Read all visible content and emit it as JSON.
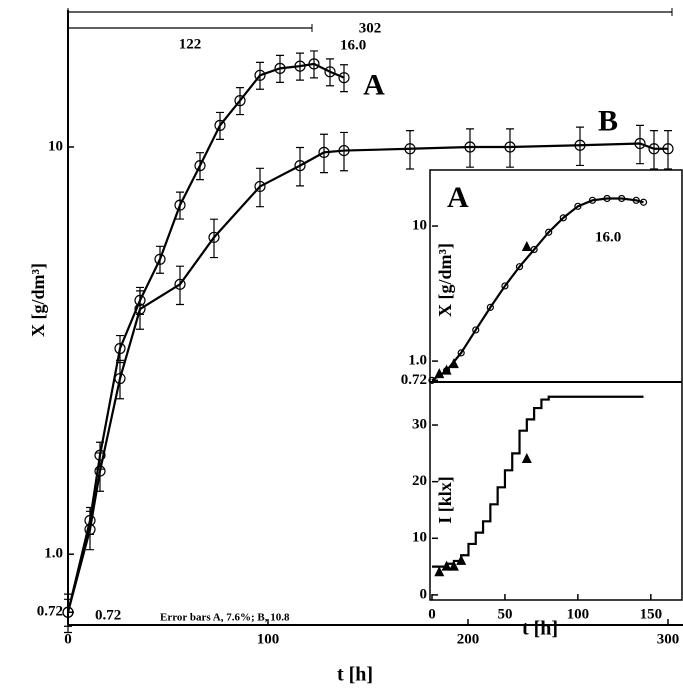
{
  "chart_data": [
    {
      "type": "line",
      "log_y": true,
      "x_label": "t [h]",
      "y_label": "X [g/dm³]",
      "xlim": [
        0,
        307.5
      ],
      "ylim": [
        0.67,
        21.7
      ],
      "xticks": [
        0,
        100,
        200,
        300
      ],
      "yticks": [
        {
          "value": 0.72,
          "label": "0.72"
        },
        {
          "value": 1,
          "label": "1.0"
        },
        10
      ],
      "spans": [
        122,
        302
      ],
      "annotations": [
        "16.0",
        "0.72",
        "Error bars A, 7.6%; B, 10.8"
      ],
      "series": [
        {
          "name": "A",
          "color": "#000000",
          "marker": "circle",
          "error_pct": 7.6,
          "x": [
            0,
            11,
            16,
            26,
            36,
            46,
            56,
            66,
            76,
            86,
            96,
            106,
            116,
            123,
            131,
            138
          ],
          "values": [
            0.72,
            1.21,
            1.75,
            3.2,
            4.2,
            5.3,
            7.2,
            9.0,
            11.3,
            13,
            15,
            15.6,
            15.8,
            16.0,
            15.3,
            14.8
          ]
        },
        {
          "name": "B",
          "color": "#000000",
          "marker": "circle",
          "error_pct": 10.8,
          "x": [
            0,
            11,
            16,
            26,
            36,
            56,
            73,
            96,
            116,
            128,
            138,
            171,
            201,
            221,
            256,
            286,
            293,
            300
          ],
          "values": [
            0.72,
            1.15,
            1.6,
            2.7,
            4.0,
            4.6,
            6.0,
            8.0,
            9.0,
            9.7,
            9.8,
            9.9,
            10.0,
            10.0,
            10.1,
            10.2,
            9.9,
            9.9
          ]
        }
      ]
    },
    {
      "type": "line",
      "log_y": true,
      "title": "A",
      "y_label": "X [g/dm³]",
      "xlim": [
        0,
        170
      ],
      "ylim": [
        0.7,
        26
      ],
      "yticks": [
        {
          "value": 0.72,
          "label": "0.72"
        },
        {
          "value": 1,
          "label": "1.0"
        },
        10
      ],
      "annotations": [
        "16.0"
      ],
      "series": [
        {
          "color": "#000000",
          "marker": "circle",
          "x": [
            0,
            10,
            20,
            30,
            40,
            50,
            60,
            70,
            80,
            90,
            100,
            110,
            120,
            130,
            140,
            145
          ],
          "values": [
            0.72,
            0.85,
            1.15,
            1.7,
            2.5,
            3.6,
            5.0,
            6.7,
            9.0,
            11.5,
            14,
            15.5,
            16,
            16,
            15.5,
            15
          ]
        },
        {
          "color": "#000000",
          "marker": "triangle",
          "x": [
            5,
            10,
            15,
            65
          ],
          "values": [
            0.8,
            0.85,
            0.95,
            7.0
          ]
        }
      ]
    },
    {
      "type": "step",
      "x_label": "t [h]",
      "y_label": "I [klx]",
      "xlim": [
        0,
        170
      ],
      "ylim": [
        -0.9,
        37.6
      ],
      "xticks": [
        0,
        50,
        100,
        150
      ],
      "yticks": [
        0,
        10,
        20,
        30
      ],
      "series": [
        {
          "color": "#000000",
          "marker": "none",
          "x": [
            0,
            5,
            10,
            15,
            20,
            25,
            30,
            35,
            40,
            45,
            50,
            55,
            60,
            65,
            70,
            75,
            80,
            145
          ],
          "values": [
            5,
            5,
            5.5,
            6,
            7,
            9,
            11,
            13,
            16,
            19,
            22,
            25,
            29,
            31,
            33,
            34.5,
            35,
            35
          ]
        },
        {
          "color": "#000000",
          "marker": "triangle",
          "x": [
            5,
            10,
            15,
            20,
            65
          ],
          "values": [
            4,
            5,
            5,
            6,
            24
          ]
        }
      ]
    }
  ]
}
